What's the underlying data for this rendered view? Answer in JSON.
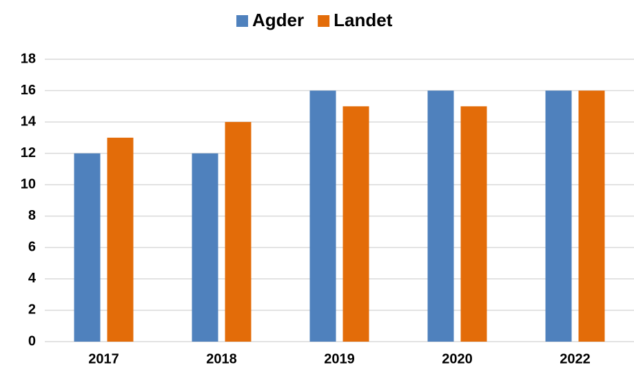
{
  "chart_data": {
    "type": "bar",
    "categories": [
      "2017",
      "2018",
      "2019",
      "2020",
      "2022"
    ],
    "series": [
      {
        "name": "Agder",
        "color": "#4f81bd",
        "values": [
          12,
          12,
          16,
          16,
          16
        ]
      },
      {
        "name": "Landet",
        "color": "#e36c09",
        "values": [
          13,
          14,
          15,
          15,
          16
        ]
      }
    ],
    "ylim": [
      0,
      18
    ],
    "yticks": [
      0,
      2,
      4,
      6,
      8,
      10,
      12,
      14,
      16,
      18
    ],
    "grid": true,
    "legend": "top"
  }
}
